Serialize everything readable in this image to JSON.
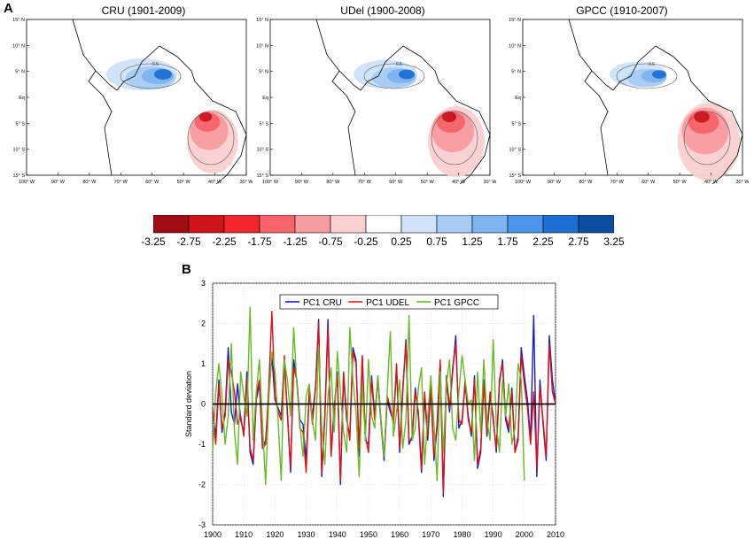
{
  "panel_a": {
    "label": "A",
    "maps": [
      {
        "title": "CRU (1901-2009)"
      },
      {
        "title": "UDel (1900-2008)"
      },
      {
        "title": "GPCC (1910-2007)"
      }
    ],
    "lat_ticks": [
      "15° N",
      "10° N",
      "5° N",
      "Eq",
      "5° S",
      "10° S",
      "15° S"
    ],
    "lon_ticks": [
      "100° W",
      "90° W",
      "80° W",
      "70° W",
      "60° W",
      "50° W",
      "40° W",
      "30° W"
    ],
    "contour_labels": [
      "0.5",
      "1"
    ],
    "colorbar": {
      "colors": [
        "#a10d12",
        "#d0141c",
        "#f4262d",
        "#f6646a",
        "#f79c9f",
        "#fbd0d1",
        "#ffffff",
        "#cfe2f9",
        "#a8cbf4",
        "#7db3ef",
        "#4b95ec",
        "#1e6fd4",
        "#0b4fa0"
      ],
      "labels": [
        "-3.25",
        "-2.75",
        "-2.25",
        "-1.75",
        "-1.25",
        "-0.75",
        "-0.25",
        "0.25",
        "0.75",
        "1.25",
        "1.75",
        "2.25",
        "2.75",
        "3.25"
      ]
    }
  },
  "panel_b": {
    "label": "B"
  },
  "chart_data": {
    "type": "line",
    "ylabel": "Standard deviation",
    "xlabel": "",
    "xlim": [
      1900,
      2010
    ],
    "ylim": [
      -3,
      3
    ],
    "xticks": [
      "1900",
      "1910",
      "1920",
      "1930",
      "1940",
      "1950",
      "1960",
      "1970",
      "1980",
      "1990",
      "2000",
      "2010"
    ],
    "yticks": [
      "-3",
      "-2",
      "-1",
      "0",
      "1",
      "2",
      "3"
    ],
    "grid": true,
    "legend_position": "top-center",
    "x_start": 1900,
    "series": [
      {
        "name": "PC1 CRU",
        "color": "#1a1acc",
        "values": [
          -0.2,
          -0.8,
          0.6,
          -0.7,
          -0.2,
          1.4,
          -0.2,
          -0.5,
          0.5,
          -0.4,
          -0.7,
          0.8,
          -1.2,
          -1.5,
          0.1,
          0.5,
          -1.1,
          -0.9,
          0.2,
          1.2,
          0.1,
          -0.1,
          -0.3,
          1.0,
          -0.2,
          -1.7,
          1.1,
          0.6,
          -0.4,
          -0.5,
          -1.4,
          0.3,
          -0.3,
          0.4,
          2.1,
          -1.8,
          -0.3,
          2.1,
          -1.2,
          -0.1,
          0.8,
          -2.0,
          0.7,
          -0.4,
          -0.8,
          1.4,
          1.1,
          -1.3,
          1.2,
          -0.9,
          -1.0,
          0.7,
          -0.3,
          0.6,
          -0.5,
          -1.4,
          0.1,
          -0.2,
          -0.4,
          0.9,
          -1.2,
          0.3,
          1.6,
          -1.0,
          -0.8,
          0.4,
          -0.3,
          -1.7,
          0.2,
          -0.9,
          0.4,
          -1.4,
          -0.6,
          1.0,
          -2.3,
          0.6,
          -0.2,
          0.8,
          1.7,
          -0.6,
          -0.4,
          0.5,
          -0.3,
          -0.8,
          0.7,
          -1.6,
          -1.2,
          0.6,
          -0.8,
          0.2,
          -0.3,
          -1.2,
          0.5,
          1.1,
          -0.4,
          -0.7,
          0.4,
          -1.2,
          -0.8,
          1.4,
          0.7,
          0.1,
          -0.9,
          2.2,
          -1.8,
          0.6,
          -0.5,
          -1.4,
          1.7,
          0.6,
          0.0
        ]
      },
      {
        "name": "PC1 UDEL",
        "color": "#dd1111",
        "values": [
          -0.1,
          -1.0,
          0.5,
          -0.6,
          -0.3,
          1.1,
          0.8,
          0.3,
          -0.5,
          -0.3,
          -0.8,
          0.6,
          -1.1,
          -1.4,
          0.2,
          0.6,
          -1.1,
          -1.0,
          0.4,
          2.3,
          0.2,
          -0.2,
          -0.4,
          1.2,
          -0.3,
          -1.6,
          0.9,
          0.6,
          -0.6,
          -0.7,
          -1.7,
          0.4,
          -0.5,
          0.4,
          2.0,
          -1.7,
          -0.3,
          1.9,
          -1.3,
          -0.1,
          0.7,
          -1.9,
          0.8,
          -0.3,
          -0.9,
          1.3,
          1.0,
          -1.1,
          1.2,
          -0.8,
          -1.2,
          0.6,
          -0.4,
          0.7,
          -0.4,
          -1.3,
          0.2,
          -0.1,
          -0.5,
          1.0,
          -1.1,
          0.4,
          1.5,
          -0.9,
          -0.9,
          0.3,
          -0.2,
          -1.6,
          0.3,
          -0.8,
          0.5,
          -1.3,
          -0.5,
          1.1,
          -2.2,
          0.7,
          -0.1,
          0.9,
          1.5,
          -0.4,
          -0.5,
          0.6,
          -0.4,
          -0.7,
          0.6,
          -1.5,
          -1.1,
          0.5,
          -0.7,
          0.3,
          -0.4,
          -1.1,
          0.6,
          1.0,
          -0.3,
          -0.6,
          0.3,
          -1.2,
          -0.9,
          1.2,
          0.5,
          -0.1,
          -1.0,
          0.3,
          -1.6,
          0.4,
          -0.4,
          -1.3,
          1.5,
          0.3,
          0.0
        ]
      },
      {
        "name": "PC1 GPCC",
        "color": "#66bb22",
        "values": [
          -1.2,
          0.3,
          1.0,
          0.2,
          -1.0,
          -0.3,
          1.5,
          -0.7,
          -1.5,
          0.8,
          0.2,
          -0.3,
          2.4,
          -0.9,
          0.3,
          1.1,
          -0.5,
          -2.0,
          0.1,
          1.3,
          0.8,
          -0.4,
          -1.9,
          1.1,
          0.6,
          -0.3,
          1.9,
          0.5,
          -0.5,
          -1.3,
          0.2,
          0.5,
          -0.4,
          -0.9,
          1.4,
          -0.6,
          -1.5,
          0.2,
          0.9,
          -0.7,
          1.3,
          0.3,
          -0.7,
          -1.2,
          1.9,
          0.6,
          -0.2,
          -1.8,
          0.5,
          -0.9,
          1.1,
          -0.3,
          -0.6,
          0.7,
          -0.5,
          -1.3,
          0.3,
          1.8,
          -0.8,
          -0.2,
          0.6,
          -1.1,
          -0.4,
          2.2,
          -0.9,
          -0.6,
          0.4,
          0.9,
          -1.5,
          -0.3,
          0.7,
          -0.5,
          -1.9,
          0.8,
          -1.2,
          0.5,
          1.1,
          -0.6,
          -0.9,
          0.3,
          1.2,
          0.6,
          0.0,
          0.1,
          -1.4,
          0.8,
          -0.7,
          1.1,
          -0.4,
          -0.9,
          1.6,
          -0.5,
          -1.2,
          0.6,
          -0.3,
          0.5,
          -1.0,
          -0.6,
          1.0,
          0.6,
          -1.9
        ]
      }
    ]
  }
}
